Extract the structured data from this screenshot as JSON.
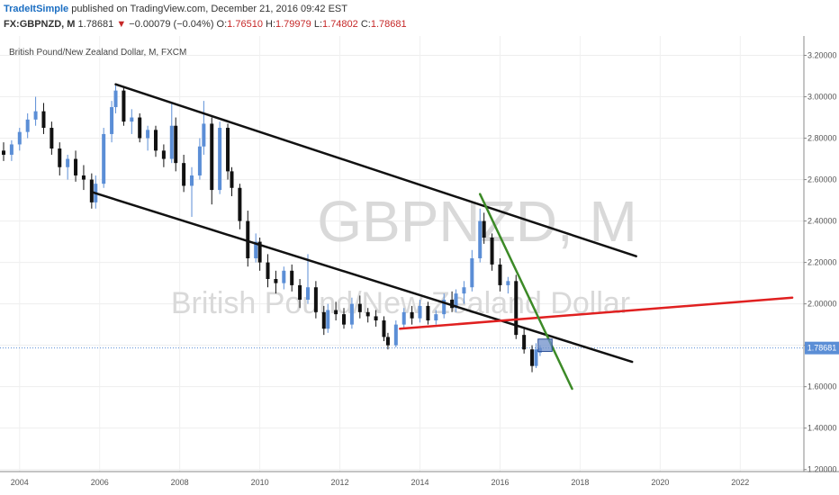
{
  "header": {
    "author": "TradeItSimple",
    "published": "published on TradingView.com, December 21, 2016 09:42 EST",
    "symbol": "FX:GBPNZD, M",
    "last": "1.78681",
    "arrow": "▼",
    "change": "−0.00079 (−0.04%)",
    "o_label": "O:",
    "o_value": "1.76510",
    "h_label": "H:",
    "h_value": "1.79979",
    "l_label": "L:",
    "l_value": "1.74802",
    "c_label": "C:",
    "c_value": "1.78681"
  },
  "pane": {
    "title": "British Pound/New Zealand Dollar, M, FXCM",
    "watermark_symbol": "GBPNZD, M",
    "watermark_name": "British Pound/New Zealand Dollar",
    "last_price_tag": "1.78681"
  },
  "chart_data": {
    "type": "candlestick",
    "x_range": [
      2003.6,
      2023.5
    ],
    "y_range": [
      1.19,
      3.25
    ],
    "x_ticks": [
      "2004",
      "2006",
      "2008",
      "2010",
      "2012",
      "2014",
      "2016",
      "2018",
      "2020",
      "2022"
    ],
    "y_ticks": [
      "1.20000",
      "1.40000",
      "1.60000",
      "1.80000",
      "2.00000",
      "2.20000",
      "2.40000",
      "2.60000",
      "2.80000",
      "3.00000",
      "3.20000"
    ],
    "last_price": 1.78681,
    "colors": {
      "up": "#5b8ed6",
      "down": "#111111",
      "last_line": "#5b8ed6",
      "tag": "#5b8ed6"
    },
    "candles": [
      [
        2003.6,
        2.74,
        2.78,
        2.69,
        2.72
      ],
      [
        2003.8,
        2.72,
        2.79,
        2.69,
        2.77
      ],
      [
        2004.0,
        2.77,
        2.85,
        2.74,
        2.83
      ],
      [
        2004.2,
        2.83,
        2.92,
        2.8,
        2.89
      ],
      [
        2004.4,
        2.89,
        3.0,
        2.86,
        2.93
      ],
      [
        2004.6,
        2.93,
        2.97,
        2.82,
        2.85
      ],
      [
        2004.8,
        2.85,
        2.88,
        2.72,
        2.75
      ],
      [
        2005.0,
        2.75,
        2.78,
        2.62,
        2.66
      ],
      [
        2005.2,
        2.66,
        2.72,
        2.6,
        2.7
      ],
      [
        2005.4,
        2.7,
        2.74,
        2.59,
        2.62
      ],
      [
        2005.6,
        2.62,
        2.67,
        2.55,
        2.6
      ],
      [
        2005.8,
        2.6,
        2.63,
        2.46,
        2.49
      ],
      [
        2005.9,
        2.49,
        2.62,
        2.46,
        2.58
      ],
      [
        2006.1,
        2.58,
        2.85,
        2.56,
        2.82
      ],
      [
        2006.3,
        2.82,
        2.98,
        2.78,
        2.95
      ],
      [
        2006.4,
        2.95,
        3.06,
        2.92,
        3.03
      ],
      [
        2006.6,
        3.03,
        3.05,
        2.86,
        2.88
      ],
      [
        2006.8,
        2.88,
        2.94,
        2.82,
        2.9
      ],
      [
        2007.0,
        2.9,
        2.92,
        2.78,
        2.8
      ],
      [
        2007.2,
        2.8,
        2.86,
        2.74,
        2.84
      ],
      [
        2007.4,
        2.84,
        2.86,
        2.71,
        2.74
      ],
      [
        2007.6,
        2.74,
        2.77,
        2.66,
        2.7
      ],
      [
        2007.8,
        2.7,
        2.97,
        2.68,
        2.86
      ],
      [
        2007.9,
        2.86,
        2.9,
        2.64,
        2.68
      ],
      [
        2008.1,
        2.68,
        2.72,
        2.54,
        2.57
      ],
      [
        2008.3,
        2.57,
        2.66,
        2.42,
        2.62
      ],
      [
        2008.5,
        2.62,
        2.8,
        2.6,
        2.76
      ],
      [
        2008.6,
        2.76,
        2.98,
        2.72,
        2.87
      ],
      [
        2008.8,
        2.87,
        2.9,
        2.48,
        2.55
      ],
      [
        2009.0,
        2.55,
        2.88,
        2.53,
        2.85
      ],
      [
        2009.2,
        2.85,
        2.87,
        2.6,
        2.64
      ],
      [
        2009.3,
        2.64,
        2.66,
        2.52,
        2.56
      ],
      [
        2009.5,
        2.56,
        2.58,
        2.36,
        2.4
      ],
      [
        2009.7,
        2.4,
        2.45,
        2.18,
        2.22
      ],
      [
        2009.9,
        2.22,
        2.34,
        2.2,
        2.3
      ],
      [
        2010.0,
        2.3,
        2.32,
        2.16,
        2.2
      ],
      [
        2010.2,
        2.2,
        2.24,
        2.08,
        2.12
      ],
      [
        2010.4,
        2.12,
        2.16,
        2.05,
        2.1
      ],
      [
        2010.6,
        2.1,
        2.18,
        2.07,
        2.16
      ],
      [
        2010.8,
        2.16,
        2.19,
        2.06,
        2.09
      ],
      [
        2011.0,
        2.09,
        2.12,
        1.98,
        2.02
      ],
      [
        2011.2,
        2.02,
        2.24,
        2.0,
        2.08
      ],
      [
        2011.4,
        2.08,
        2.11,
        1.93,
        1.96
      ],
      [
        2011.6,
        1.96,
        1.99,
        1.85,
        1.88
      ],
      [
        2011.7,
        1.88,
        2.0,
        1.86,
        1.97
      ],
      [
        2011.9,
        1.97,
        2.01,
        1.92,
        1.95
      ],
      [
        2012.1,
        1.95,
        1.98,
        1.88,
        1.9
      ],
      [
        2012.3,
        1.9,
        2.03,
        1.88,
        2.0
      ],
      [
        2012.5,
        2.0,
        2.04,
        1.93,
        1.96
      ],
      [
        2012.7,
        1.96,
        1.98,
        1.91,
        1.94
      ],
      [
        2012.9,
        1.94,
        1.97,
        1.89,
        1.92
      ],
      [
        2013.1,
        1.92,
        1.94,
        1.82,
        1.84
      ],
      [
        2013.2,
        1.84,
        1.86,
        1.78,
        1.8
      ],
      [
        2013.4,
        1.8,
        1.92,
        1.79,
        1.9
      ],
      [
        2013.6,
        1.9,
        1.98,
        1.88,
        1.96
      ],
      [
        2013.8,
        1.96,
        1.99,
        1.9,
        1.93
      ],
      [
        2014.0,
        1.93,
        2.02,
        1.91,
        1.99
      ],
      [
        2014.2,
        1.99,
        2.01,
        1.9,
        1.92
      ],
      [
        2014.4,
        1.92,
        1.97,
        1.9,
        1.95
      ],
      [
        2014.6,
        1.95,
        2.05,
        1.93,
        2.02
      ],
      [
        2014.8,
        2.02,
        2.06,
        1.96,
        1.98
      ],
      [
        2014.9,
        1.98,
        2.07,
        1.96,
        2.05
      ],
      [
        2015.1,
        2.05,
        2.11,
        2.0,
        2.08
      ],
      [
        2015.3,
        2.08,
        2.26,
        2.06,
        2.22
      ],
      [
        2015.5,
        2.22,
        2.46,
        2.2,
        2.4
      ],
      [
        2015.6,
        2.4,
        2.44,
        2.29,
        2.32
      ],
      [
        2015.8,
        2.32,
        2.34,
        2.16,
        2.19
      ],
      [
        2016.0,
        2.19,
        2.22,
        2.06,
        2.09
      ],
      [
        2016.2,
        2.09,
        2.13,
        2.05,
        2.11
      ],
      [
        2016.4,
        2.11,
        2.14,
        1.83,
        1.85
      ],
      [
        2016.6,
        1.85,
        1.88,
        1.76,
        1.78
      ],
      [
        2016.8,
        1.78,
        1.8,
        1.67,
        1.7
      ],
      [
        2016.9,
        1.7,
        1.81,
        1.69,
        1.78
      ],
      [
        2017.0,
        1.765,
        1.8,
        1.748,
        1.787
      ]
    ],
    "lines": [
      {
        "name": "upper-channel",
        "color": "#111111",
        "p1": [
          2006.4,
          3.06
        ],
        "p2": [
          2019.4,
          2.23
        ]
      },
      {
        "name": "lower-channel",
        "color": "#111111",
        "p1": [
          2005.8,
          2.54
        ],
        "p2": [
          2019.3,
          1.72
        ]
      },
      {
        "name": "red-support",
        "color": "#e02020",
        "p1": [
          2013.5,
          1.88
        ],
        "p2": [
          2023.3,
          2.03
        ]
      },
      {
        "name": "green-trend",
        "color": "#3c8a27",
        "p1": [
          2015.5,
          2.53
        ],
        "p2": [
          2017.8,
          1.59
        ]
      }
    ],
    "marker": {
      "x": [
        2016.95,
        2017.3
      ],
      "y": [
        1.77,
        1.83
      ],
      "fill": "#6d8fc9",
      "stroke": "#2c4f96"
    }
  }
}
